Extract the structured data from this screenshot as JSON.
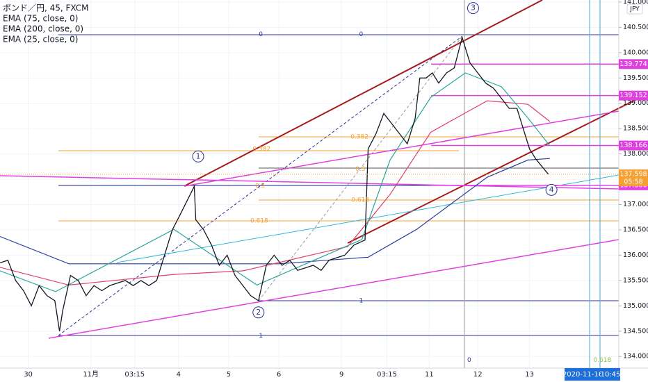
{
  "chart_data": {
    "type": "line",
    "title": "ボンド／円, 45, FXCM",
    "indicators": [
      "EMA (75, close, 0)",
      "EMA (200, close, 0)",
      "EMA (25, close, 0)"
    ],
    "currency": "JPY",
    "xlim": [
      0,
      395
    ],
    "ylim": [
      133.77,
      141.04
    ],
    "xticks": [
      {
        "value": 18,
        "label": "30"
      },
      {
        "value": 58,
        "label": "11月"
      },
      {
        "value": 86,
        "label": "03:15"
      },
      {
        "value": 114,
        "label": "4"
      },
      {
        "value": 146,
        "label": "5"
      },
      {
        "value": 178,
        "label": "6"
      },
      {
        "value": 218,
        "label": "9"
      },
      {
        "value": 247,
        "label": "03:15"
      },
      {
        "value": 274,
        "label": "11"
      },
      {
        "value": 305,
        "label": "12"
      },
      {
        "value": 338,
        "label": "13"
      }
    ],
    "yticks": [
      {
        "value": 134,
        "label": "134.000"
      },
      {
        "value": 134.5,
        "label": "134.500"
      },
      {
        "value": 135,
        "label": "135.000"
      },
      {
        "value": 135.5,
        "label": "135.500"
      },
      {
        "value": 136,
        "label": "136.000"
      },
      {
        "value": 136.5,
        "label": "136.500"
      },
      {
        "value": 137,
        "label": "137.000"
      },
      {
        "value": 137.5,
        "label": "137.500"
      },
      {
        "value": 138,
        "label": "138.000"
      },
      {
        "value": 138.5,
        "label": "138.500"
      },
      {
        "value": 139,
        "label": "139.000"
      },
      {
        "value": 139.5,
        "label": "139.500"
      },
      {
        "value": 140,
        "label": "140.000"
      },
      {
        "value": 140.5,
        "label": "140.500"
      },
      {
        "value": 141,
        "label": "141.000"
      }
    ],
    "series": [
      {
        "name": "ボンド／円",
        "color": "#131722",
        "x": [
          0,
          5,
          10,
          15,
          20,
          25,
          30,
          35,
          38,
          40,
          45,
          50,
          55,
          60,
          65,
          70,
          75,
          80,
          85,
          90,
          95,
          100,
          105,
          110,
          115,
          124,
          125,
          130,
          135,
          140,
          145,
          150,
          160,
          165,
          170,
          175,
          180,
          185,
          190,
          200,
          205,
          210,
          220,
          226,
          233,
          235,
          240,
          245,
          250,
          255,
          260,
          265,
          268,
          272,
          276,
          280,
          285,
          290,
          295,
          300,
          305,
          310,
          315,
          320,
          325,
          330,
          335,
          338,
          342,
          350
        ],
        "values": [
          135.85,
          135.9,
          135.5,
          135.3,
          135.0,
          135.4,
          135.2,
          135.1,
          134.5,
          134.9,
          135.6,
          135.5,
          135.2,
          135.4,
          135.3,
          135.4,
          135.45,
          135.5,
          135.4,
          135.5,
          135.4,
          135.5,
          136.0,
          136.5,
          136.8,
          137.36,
          136.7,
          136.5,
          136.2,
          135.8,
          136.0,
          135.6,
          135.2,
          135.1,
          135.8,
          136.0,
          135.8,
          135.9,
          135.7,
          135.8,
          135.7,
          135.9,
          136.0,
          136.2,
          136.3,
          138.1,
          138.4,
          138.8,
          138.6,
          138.4,
          138.2,
          138.7,
          139.5,
          139.5,
          139.6,
          139.4,
          139.6,
          139.7,
          140.3,
          139.8,
          139.6,
          139.4,
          139.3,
          139.1,
          138.9,
          138.9,
          138.4,
          138.1,
          137.9,
          137.6
        ]
      },
      {
        "name": "EMA (200, close, 0)",
        "color": "#2a3f9e",
        "x": [
          0,
          44,
          133,
          178,
          235,
          266,
          311,
          337,
          351
        ],
        "values": [
          136.37,
          135.83,
          135.83,
          135.83,
          135.96,
          136.51,
          137.54,
          137.88,
          137.91
        ]
      },
      {
        "name": "EMA (75, close, 0)",
        "color": "#e0406a",
        "x": [
          0,
          44,
          111,
          155,
          222,
          249,
          275,
          311,
          337,
          351
        ],
        "values": [
          135.76,
          135.41,
          135.62,
          135.69,
          136.17,
          137.2,
          138.43,
          139.05,
          138.98,
          138.64
        ]
      },
      {
        "name": "EMA (25, close, 0)",
        "color": "#26a69a",
        "x": [
          0,
          35.5,
          111,
          164,
          231,
          249,
          275,
          297,
          320,
          337,
          351
        ],
        "values": [
          135.69,
          135.28,
          136.51,
          135.41,
          136.31,
          137.88,
          139.12,
          139.6,
          139.33,
          138.71,
          138.16
        ]
      }
    ],
    "levels": [
      {
        "value": 139.774,
        "label": "139.774"
      },
      {
        "value": 139.152,
        "label": "139.152"
      },
      {
        "value": 138.166,
        "label": "138.166"
      },
      {
        "value": 137.38,
        "label": "137.380"
      }
    ],
    "last_price": {
      "value": 137.598,
      "label": "137.598",
      "countdown": "05:58"
    },
    "cursor": {
      "date": "2020-11-16",
      "time": "10:45"
    },
    "annotations": [
      {
        "text": "0",
        "x": 166.5,
        "y": 140.36
      },
      {
        "text": "0",
        "x": 230.5,
        "y": 140.36
      },
      {
        "text": "0.382",
        "x": 167,
        "y": 138.1
      },
      {
        "text": "0.382",
        "x": 229.5,
        "y": 138.34
      },
      {
        "text": "0.5",
        "x": 166,
        "y": 137.37
      },
      {
        "text": "0.5",
        "x": 230,
        "y": 137.7
      },
      {
        "text": "0.618",
        "x": 165.5,
        "y": 136.68
      },
      {
        "text": "0.618",
        "x": 230,
        "y": 137.09
      },
      {
        "text": "1",
        "x": 230.5,
        "y": 135.1
      },
      {
        "text": "1",
        "x": 166.5,
        "y": 134.41
      },
      {
        "text": "0",
        "x": 299.5,
        "y": 133.93
      },
      {
        "text": "0.618",
        "x": 384.5,
        "y": 133.93
      },
      {
        "text": "1",
        "x": 126.5,
        "y": 137.95
      },
      {
        "text": "2",
        "x": 165,
        "y": 134.87
      },
      {
        "text": "3",
        "x": 302,
        "y": 140.88
      },
      {
        "text": "4",
        "x": 352,
        "y": 137.29
      }
    ]
  }
}
